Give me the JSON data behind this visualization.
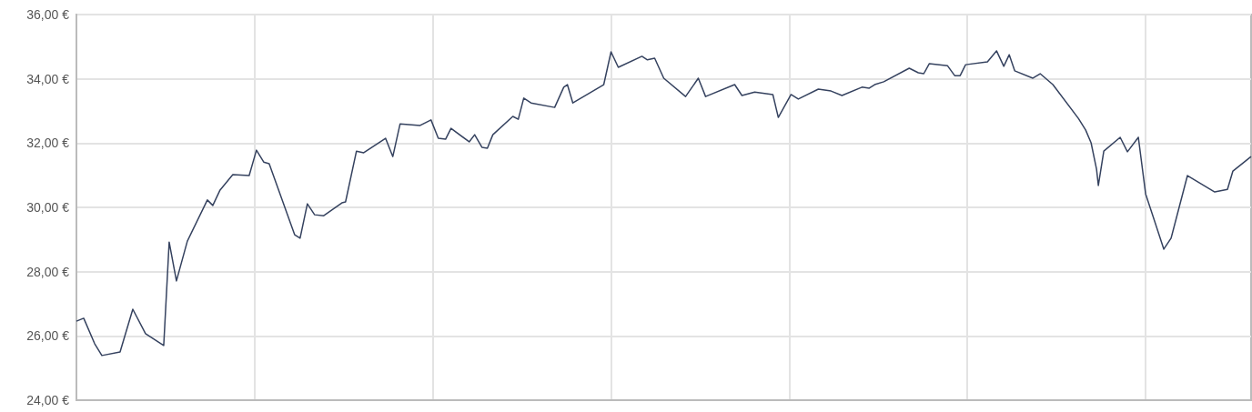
{
  "chart_data": {
    "type": "line",
    "color": "#35425f",
    "categories": [
      null,
      null,
      null,
      null,
      null,
      null,
      null,
      null,
      null,
      null,
      null,
      null,
      null,
      null,
      null,
      null,
      null,
      null,
      null,
      null,
      null,
      null,
      null,
      null,
      null,
      null,
      null,
      null,
      null,
      null,
      null,
      null,
      null,
      null,
      null,
      null,
      null,
      null,
      null,
      null,
      null,
      null,
      null,
      null,
      null,
      null,
      null,
      null,
      null,
      null,
      null,
      null,
      null,
      null,
      null,
      null,
      null,
      null,
      null,
      null,
      null,
      null,
      null,
      null,
      null,
      null,
      null,
      null,
      null,
      null,
      null,
      null,
      null,
      null,
      null,
      null,
      null,
      null,
      null,
      null,
      null,
      null,
      null,
      null,
      null,
      null,
      null,
      null,
      null,
      null,
      null,
      null,
      null,
      null,
      null,
      null,
      null,
      null,
      null,
      null,
      null,
      null,
      null,
      null,
      null,
      null,
      null,
      null,
      null,
      null,
      null,
      null,
      null,
      null,
      null,
      null,
      null,
      null,
      null,
      null,
      null,
      null,
      null,
      null,
      null,
      null,
      null,
      null,
      null,
      null,
      null,
      null,
      null,
      null,
      null,
      null,
      null,
      null,
      null,
      null,
      null,
      null,
      null,
      null,
      null,
      null,
      null,
      null,
      null,
      null,
      null,
      null,
      null,
      null,
      null,
      null,
      null,
      null,
      null,
      null,
      null,
      null,
      null,
      null,
      null,
      null,
      null,
      null,
      null,
      null,
      null,
      null,
      null,
      null,
      null,
      null,
      null,
      null,
      null,
      null,
      null,
      null,
      null,
      null,
      null,
      null,
      null,
      null,
      null,
      null,
      null,
      null,
      null,
      null,
      null,
      null,
      null,
      null,
      null,
      null,
      null,
      null,
      null,
      null,
      null,
      null,
      null,
      null,
      null,
      null,
      null,
      null,
      null,
      null,
      null,
      null,
      null,
      null,
      null,
      null,
      null,
      null,
      null,
      null,
      null,
      null,
      null,
      null,
      null,
      null,
      null,
      null,
      null,
      null,
      null,
      null,
      null,
      null,
      null,
      null,
      null,
      null,
      null,
      null,
      null,
      null,
      null,
      null,
      null,
      null,
      null,
      null,
      null,
      null,
      null,
      null,
      null,
      null,
      null,
      null,
      null,
      null,
      null,
      null,
      null,
      null,
      null,
      null,
      null,
      null,
      null,
      null,
      null,
      null,
      null,
      null,
      null,
      null,
      null,
      null,
      null,
      null,
      null,
      null,
      null,
      null,
      null,
      null,
      null,
      null,
      null,
      null,
      null,
      null,
      null,
      null,
      null,
      null,
      null,
      null,
      null,
      null,
      null,
      null,
      null,
      null,
      null,
      null,
      null,
      null,
      null,
      null,
      null,
      null,
      null,
      null,
      null,
      null,
      null,
      null,
      null,
      null,
      null,
      null,
      null,
      null,
      null,
      null,
      null,
      null,
      null,
      null,
      null,
      null,
      null,
      null,
      null,
      null,
      null,
      null,
      null,
      null,
      null,
      null,
      null,
      null,
      null,
      null,
      null,
      null,
      null,
      null,
      null,
      null,
      null,
      null,
      null,
      null,
      null,
      null,
      null,
      null,
      null,
      null,
      null,
      null,
      null,
      null,
      null,
      null,
      null,
      null,
      null,
      null,
      null,
      null,
      null,
      null,
      null,
      null,
      null,
      null,
      null,
      null,
      null,
      null,
      null,
      null,
      null,
      null,
      null,
      null,
      null,
      null,
      null,
      null,
      null,
      null,
      null,
      null,
      null,
      null,
      null,
      null,
      null,
      null,
      null,
      null,
      null,
      null,
      null,
      null,
      null,
      null,
      null,
      null,
      null,
      null,
      null,
      null,
      null,
      null,
      null,
      null,
      null,
      null,
      null,
      null,
      null,
      null,
      null,
      null,
      null,
      null,
      null,
      null,
      null,
      null,
      null,
      null,
      null,
      null,
      null,
      null,
      null,
      null,
      null,
      null,
      null,
      null,
      null,
      null,
      null,
      null,
      null,
      null,
      null,
      null,
      null,
      null,
      null,
      null,
      null,
      null,
      null,
      null,
      null,
      null,
      null,
      null,
      null,
      null,
      null,
      null,
      null,
      null,
      null,
      null,
      null,
      null,
      null,
      null,
      null,
      null,
      null,
      null,
      null,
      null,
      null,
      null,
      null,
      null,
      null,
      null,
      null,
      null,
      null,
      null,
      null,
      null,
      null,
      null,
      null,
      null,
      null,
      null,
      null,
      null,
      null,
      null,
      null,
      null,
      null,
      null,
      null,
      null,
      null,
      null,
      null,
      null,
      null,
      null,
      null,
      null,
      null,
      null,
      null,
      null,
      null,
      null,
      null,
      null,
      null,
      null,
      null,
      null,
      null,
      null,
      null,
      null,
      null,
      null,
      null,
      null,
      null,
      null,
      null,
      null,
      null,
      null,
      null,
      null,
      null,
      null,
      null,
      null,
      null,
      null,
      null,
      null,
      null,
      null,
      null,
      null,
      null,
      null,
      null,
      null,
      null,
      null,
      null,
      null,
      null,
      null,
      null,
      null,
      null,
      null,
      null,
      null,
      null,
      null,
      null,
      null,
      null,
      null,
      null,
      null,
      null,
      null,
      null,
      null,
      null,
      null,
      null,
      null,
      null,
      null,
      null,
      null,
      null,
      null,
      null,
      null,
      null,
      null,
      null,
      null,
      null,
      null,
      null,
      null,
      null,
      null,
      null,
      null,
      null,
      null,
      null,
      null,
      null,
      null,
      null,
      null,
      null,
      null,
      null,
      null,
      null,
      null,
      null,
      null,
      null,
      null,
      null,
      null,
      null,
      null,
      null,
      null,
      null,
      null,
      null,
      null,
      null,
      null,
      null
    ],
    "values": [
      26.46,
      null,
      null,
      null,
      26.55,
      null,
      null,
      null,
      null,
      null,
      25.76,
      null,
      null,
      null,
      25.39,
      null,
      null,
      null,
      null,
      null,
      null,
      null,
      null,
      null,
      25.5,
      null,
      null,
      null,
      null,
      null,
      null,
      26.83,
      null,
      null,
      null,
      null,
      null,
      null,
      26.07,
      null,
      null,
      null,
      null,
      null,
      null,
      null,
      null,
      null,
      25.7,
      null,
      null,
      28.92,
      null,
      null,
      null,
      27.71,
      null,
      null,
      null,
      null,
      null,
      28.95,
      null,
      null,
      null,
      null,
      null,
      null,
      null,
      null,
      null,
      null,
      30.23,
      null,
      null,
      30.06,
      null,
      null,
      null,
      30.54,
      null,
      null,
      null,
      null,
      null,
      null,
      31.02,
      null,
      null,
      null,
      null,
      null,
      null,
      null,
      null,
      30.99,
      null,
      null,
      null,
      31.78,
      null,
      null,
      null,
      31.41,
      null,
      null,
      31.36,
      null,
      null,
      null,
      null,
      null,
      null,
      null,
      null,
      null,
      null,
      null,
      null,
      null,
      29.15,
      null,
      null,
      29.04,
      null,
      null,
      null,
      30.11,
      null,
      null,
      null,
      29.77,
      null,
      null,
      null,
      null,
      29.74,
      null,
      null,
      null,
      null,
      null,
      null,
      null,
      null,
      null,
      30.14,
      null,
      30.17,
      null,
      null,
      null,
      null,
      null,
      31.75,
      null,
      null,
      null,
      31.7,
      null,
      null,
      null,
      null,
      null,
      null,
      null,
      null,
      null,
      null,
      null,
      32.15,
      null,
      null,
      null,
      31.58,
      null,
      null,
      null,
      32.6,
      null,
      null,
      null,
      null,
      null,
      null,
      null,
      null,
      null,
      null,
      32.55,
      null,
      null,
      null,
      null,
      null,
      32.72,
      null,
      null,
      null,
      32.15,
      null,
      null,
      null,
      32.12,
      null,
      null,
      32.46,
      null,
      null,
      null,
      null,
      null,
      null,
      null,
      null,
      null,
      32.04,
      null,
      null,
      32.26,
      null,
      null,
      null,
      31.87,
      null,
      null,
      31.84,
      null,
      null,
      32.26,
      null,
      null,
      null,
      null,
      null,
      null,
      null,
      null,
      null,
      null,
      32.83,
      null,
      null,
      32.74,
      null,
      null,
      33.4,
      null,
      null,
      null,
      33.25,
      null,
      null,
      null,
      null,
      null,
      null,
      null,
      null,
      null,
      null,
      null,
      null,
      33.11,
      null,
      null,
      null,
      null,
      33.74,
      null,
      33.82,
      null,
      null,
      33.25,
      null,
      null,
      null,
      null,
      null,
      null,
      null,
      null,
      null,
      null,
      null,
      null,
      null,
      null,
      null,
      null,
      33.82,
      null,
      null,
      null,
      34.84,
      null,
      null,
      null,
      34.36,
      null,
      null,
      null,
      null,
      null,
      null,
      null,
      null,
      null,
      null,
      null,
      null,
      34.7,
      null,
      null,
      34.59,
      null,
      null,
      null,
      34.64,
      null,
      null,
      null,
      null,
      34.02,
      null,
      null,
      null,
      null,
      null,
      null,
      null,
      null,
      null,
      null,
      null,
      33.45,
      null,
      null,
      null,
      null,
      null,
      null,
      34.02,
      null,
      null,
      null,
      33.45,
      null,
      null,
      null,
      null,
      null,
      null,
      null,
      null,
      null,
      null,
      null,
      null,
      null,
      null,
      null,
      33.82,
      null,
      null,
      null,
      33.48,
      null,
      null,
      null,
      null,
      null,
      null,
      33.59,
      null,
      null,
      null,
      null,
      null,
      null,
      null,
      null,
      null,
      33.51,
      null,
      null,
      32.8,
      null,
      null,
      null,
      null,
      null,
      null,
      33.51,
      null,
      null,
      null,
      33.37,
      null,
      null,
      null,
      null,
      null,
      null,
      null,
      null,
      null,
      null,
      33.68,
      null,
      null,
      null,
      null,
      null,
      null,
      33.62,
      null,
      null,
      null,
      null,
      null,
      33.48,
      null,
      null,
      null,
      null,
      null,
      null,
      null,
      null,
      null,
      null,
      33.74,
      null,
      null,
      null,
      33.71,
      null,
      null,
      33.82,
      null,
      null,
      null,
      null,
      33.91,
      null,
      null,
      null,
      null,
      null,
      null,
      null,
      null,
      null,
      null,
      null,
      null,
      null,
      34.33,
      null,
      null,
      null,
      null,
      34.19,
      null,
      null,
      34.16,
      null,
      null,
      34.47,
      null,
      null,
      null,
      null,
      null,
      null,
      null,
      null,
      null,
      34.41,
      null,
      null,
      null,
      34.1,
      null,
      null,
      34.1,
      null,
      null,
      34.44,
      null,
      null,
      null,
      null,
      null,
      null,
      null,
      null,
      null,
      null,
      null,
      34.53,
      null,
      null,
      null,
      null,
      34.87,
      null,
      null,
      null,
      34.39,
      null,
      null,
      34.75,
      null,
      null,
      34.25,
      null,
      null,
      null,
      null,
      null,
      null,
      null,
      null,
      null,
      34.02,
      null,
      null,
      null,
      34.16,
      null,
      null,
      null,
      null,
      null,
      null,
      33.82,
      null,
      null,
      null,
      null,
      null,
      null,
      null,
      null,
      null,
      null,
      null,
      null,
      null,
      32.77,
      null,
      null,
      null,
      32.41,
      null,
      null,
      32.01,
      null,
      null,
      31.19,
      30.68,
      null,
      null,
      31.75,
      null,
      null,
      null,
      null,
      null,
      null,
      null,
      null,
      32.18,
      null,
      null,
      null,
      31.73,
      null,
      null,
      null,
      null,
      null,
      32.18,
      null,
      null,
      null,
      30.42,
      null,
      null,
      null,
      null,
      null,
      null,
      null,
      null,
      null,
      28.7,
      null,
      null,
      null,
      29.04,
      null,
      null,
      null,
      null,
      null,
      null,
      null,
      null,
      30.99,
      null,
      null,
      null,
      null,
      null,
      null,
      null,
      null,
      null,
      null,
      null,
      null,
      null,
      null,
      30.48,
      null,
      null,
      null,
      null,
      null,
      null,
      30.56,
      null,
      null,
      31.13,
      null,
      null,
      null,
      null,
      null,
      null,
      null,
      null,
      null,
      31.58
    ],
    "ylim": [
      24,
      36
    ],
    "yticks": [
      {
        "value": 24,
        "label": "24,00 €"
      },
      {
        "value": 26,
        "label": "26,00 €"
      },
      {
        "value": 28,
        "label": "28,00 €"
      },
      {
        "value": 30,
        "label": "30,00 €"
      },
      {
        "value": 32,
        "label": "32,00 €"
      },
      {
        "value": 34,
        "label": "34,00 €"
      },
      {
        "value": 36,
        "label": "36,00 €"
      }
    ],
    "grid": true,
    "line_style": "solid"
  }
}
